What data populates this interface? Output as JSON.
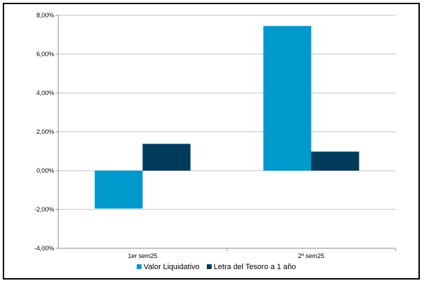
{
  "chart_data": {
    "type": "bar",
    "categories": [
      "1er sem25",
      "2º sem25"
    ],
    "series": [
      {
        "name": "Valor Liquidativo",
        "color": "#0099cc",
        "values": [
          -1.95,
          7.45
        ]
      },
      {
        "name": "Letra del Tesoro a 1 año",
        "color": "#003b5c",
        "values": [
          1.38,
          0.98
        ]
      }
    ],
    "yticks": [
      "8,00%",
      "6,00%",
      "4,00%",
      "2,00%",
      "0,00%",
      "-2,00%",
      "-4,00%"
    ],
    "ylim": [
      -4,
      8
    ],
    "grid": true,
    "legend_position": "bottom"
  }
}
